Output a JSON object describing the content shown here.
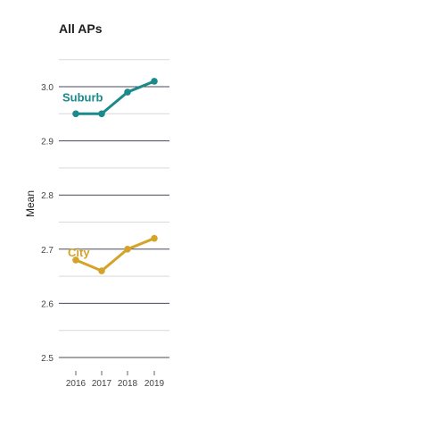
{
  "chart_data": {
    "type": "line",
    "title": "All APs",
    "xlabel": "",
    "ylabel": "Mean",
    "x": [
      "2016",
      "2017",
      "2018",
      "2019"
    ],
    "y_ticks": [
      "2.5",
      "2.6",
      "2.7",
      "2.8",
      "2.9",
      "3.0"
    ],
    "ylim": [
      2.48,
      3.05
    ],
    "grid": true,
    "legend": "direct labels",
    "series": [
      {
        "name": "Suburb",
        "color": "#1a8a8a",
        "values": [
          2.95,
          2.95,
          2.99,
          3.01
        ]
      },
      {
        "name": "City",
        "color": "#d4a32a",
        "values": [
          2.68,
          2.66,
          2.7,
          2.72
        ]
      }
    ]
  }
}
